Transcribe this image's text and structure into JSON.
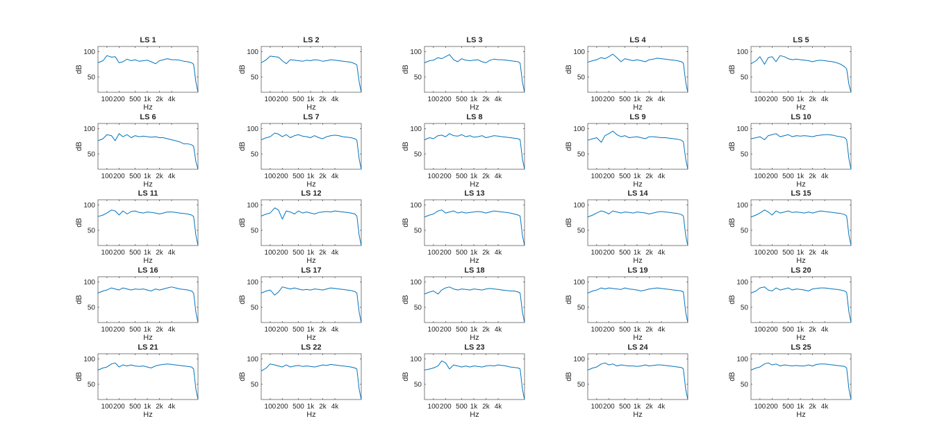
{
  "colors": {
    "line": "#0072bd",
    "axis": "#262626",
    "background": "#ffffff"
  },
  "chart_data": {
    "type": "line",
    "layout": "grid",
    "rows": 5,
    "cols": 5,
    "xscale": "log",
    "xlim": [
      60,
      18000
    ],
    "ylim": [
      20,
      110
    ],
    "xticks": [
      100,
      200,
      500,
      1000,
      2000,
      4000
    ],
    "xtick_labels": [
      "100",
      "200",
      "500",
      "1k",
      "2k",
      "4k"
    ],
    "yticks": [
      50,
      100
    ],
    "ytick_labels": [
      "50",
      "100"
    ],
    "xlabel": "Hz",
    "ylabel": "dB",
    "grid": false,
    "x": [
      60,
      80,
      100,
      130,
      160,
      200,
      250,
      315,
      400,
      500,
      630,
      800,
      1000,
      1250,
      1600,
      2000,
      2500,
      3150,
      4000,
      5000,
      6300,
      8000,
      10000,
      12500,
      14000,
      16000,
      18000
    ],
    "panels": [
      {
        "title": "LS 1",
        "values": [
          78,
          82,
          92,
          89,
          90,
          78,
          80,
          85,
          82,
          84,
          81,
          82,
          83,
          80,
          76,
          82,
          84,
          86,
          84,
          84,
          83,
          81,
          80,
          78,
          75,
          40,
          20
        ]
      },
      {
        "title": "LS 2",
        "values": [
          78,
          84,
          91,
          90,
          89,
          82,
          76,
          84,
          83,
          82,
          81,
          83,
          82,
          84,
          83,
          81,
          82,
          84,
          83,
          82,
          81,
          80,
          79,
          76,
          74,
          40,
          20
        ]
      },
      {
        "title": "LS 3",
        "values": [
          78,
          82,
          83,
          88,
          86,
          90,
          94,
          84,
          80,
          86,
          83,
          82,
          83,
          84,
          80,
          78,
          83,
          85,
          84,
          84,
          83,
          82,
          81,
          80,
          77,
          40,
          20
        ]
      },
      {
        "title": "LS 4",
        "values": [
          79,
          82,
          84,
          88,
          86,
          90,
          95,
          88,
          80,
          86,
          84,
          82,
          84,
          82,
          80,
          84,
          85,
          87,
          86,
          85,
          84,
          83,
          82,
          80,
          77,
          40,
          20
        ]
      },
      {
        "title": "LS 5",
        "values": [
          76,
          82,
          90,
          75,
          88,
          90,
          80,
          92,
          90,
          86,
          84,
          85,
          84,
          83,
          82,
          80,
          82,
          83,
          82,
          81,
          80,
          78,
          75,
          70,
          66,
          35,
          20
        ]
      },
      {
        "title": "LS 6",
        "values": [
          76,
          80,
          88,
          86,
          76,
          90,
          84,
          88,
          82,
          86,
          84,
          85,
          84,
          83,
          84,
          82,
          82,
          80,
          78,
          76,
          74,
          70,
          70,
          68,
          65,
          35,
          20
        ]
      },
      {
        "title": "LS 7",
        "values": [
          78,
          82,
          84,
          91,
          89,
          84,
          88,
          82,
          86,
          88,
          85,
          84,
          82,
          86,
          82,
          80,
          84,
          86,
          87,
          86,
          84,
          83,
          82,
          80,
          77,
          40,
          20
        ]
      },
      {
        "title": "LS 8",
        "values": [
          78,
          82,
          80,
          86,
          87,
          84,
          90,
          86,
          85,
          88,
          84,
          86,
          83,
          84,
          86,
          82,
          84,
          86,
          85,
          84,
          83,
          82,
          81,
          80,
          78,
          40,
          20
        ]
      },
      {
        "title": "LS 9",
        "values": [
          77,
          80,
          82,
          73,
          86,
          90,
          95,
          88,
          84,
          86,
          82,
          83,
          84,
          82,
          80,
          84,
          84,
          83,
          82,
          82,
          81,
          80,
          79,
          77,
          74,
          40,
          20
        ]
      },
      {
        "title": "LS 10",
        "values": [
          80,
          82,
          84,
          78,
          86,
          88,
          90,
          84,
          86,
          88,
          84,
          86,
          85,
          86,
          85,
          84,
          86,
          87,
          88,
          88,
          87,
          85,
          84,
          82,
          78,
          40,
          20
        ]
      },
      {
        "title": "LS 11",
        "values": [
          77,
          80,
          84,
          90,
          88,
          80,
          88,
          82,
          87,
          88,
          85,
          84,
          86,
          85,
          84,
          82,
          84,
          86,
          86,
          85,
          84,
          83,
          82,
          80,
          77,
          40,
          20
        ]
      },
      {
        "title": "LS 12",
        "values": [
          78,
          82,
          84,
          94,
          90,
          72,
          88,
          86,
          82,
          88,
          84,
          86,
          84,
          82,
          85,
          86,
          87,
          86,
          88,
          87,
          86,
          85,
          84,
          82,
          78,
          40,
          20
        ]
      },
      {
        "title": "LS 13",
        "values": [
          76,
          80,
          82,
          88,
          90,
          84,
          86,
          88,
          84,
          86,
          84,
          85,
          86,
          87,
          86,
          84,
          86,
          88,
          87,
          86,
          85,
          84,
          82,
          80,
          78,
          40,
          20
        ]
      },
      {
        "title": "LS 14",
        "values": [
          76,
          80,
          84,
          88,
          86,
          82,
          88,
          86,
          84,
          86,
          85,
          84,
          86,
          85,
          84,
          82,
          84,
          86,
          87,
          86,
          85,
          84,
          83,
          81,
          78,
          40,
          20
        ]
      },
      {
        "title": "LS 15",
        "values": [
          76,
          80,
          84,
          90,
          86,
          80,
          88,
          84,
          86,
          88,
          85,
          86,
          85,
          84,
          86,
          84,
          86,
          88,
          87,
          86,
          85,
          84,
          83,
          81,
          78,
          40,
          20
        ]
      },
      {
        "title": "LS 16",
        "values": [
          78,
          82,
          84,
          88,
          86,
          84,
          88,
          86,
          84,
          86,
          85,
          86,
          84,
          82,
          86,
          84,
          86,
          88,
          90,
          88,
          86,
          85,
          84,
          82,
          78,
          40,
          20
        ]
      },
      {
        "title": "LS 17",
        "values": [
          78,
          82,
          84,
          74,
          80,
          90,
          88,
          86,
          88,
          86,
          84,
          85,
          84,
          86,
          85,
          84,
          86,
          88,
          87,
          86,
          85,
          84,
          83,
          81,
          78,
          40,
          20
        ]
      },
      {
        "title": "LS 18",
        "values": [
          76,
          80,
          82,
          76,
          84,
          88,
          90,
          86,
          84,
          86,
          85,
          84,
          86,
          85,
          84,
          86,
          87,
          86,
          85,
          84,
          83,
          82,
          82,
          80,
          78,
          40,
          20
        ]
      },
      {
        "title": "LS 19",
        "values": [
          78,
          82,
          84,
          88,
          86,
          88,
          87,
          86,
          85,
          88,
          86,
          85,
          84,
          82,
          84,
          86,
          87,
          88,
          87,
          86,
          85,
          84,
          83,
          82,
          80,
          40,
          20
        ]
      },
      {
        "title": "LS 20",
        "values": [
          78,
          82,
          88,
          90,
          84,
          82,
          88,
          84,
          86,
          88,
          84,
          86,
          85,
          84,
          82,
          86,
          87,
          88,
          88,
          87,
          86,
          85,
          84,
          82,
          79,
          40,
          20
        ]
      },
      {
        "title": "LS 21",
        "values": [
          78,
          82,
          84,
          90,
          92,
          84,
          88,
          86,
          88,
          86,
          85,
          86,
          84,
          82,
          86,
          88,
          89,
          90,
          89,
          88,
          87,
          86,
          85,
          84,
          80,
          40,
          20
        ]
      },
      {
        "title": "LS 22",
        "values": [
          76,
          82,
          90,
          88,
          86,
          84,
          88,
          84,
          86,
          87,
          85,
          86,
          85,
          84,
          86,
          88,
          87,
          89,
          88,
          87,
          86,
          85,
          84,
          82,
          80,
          40,
          20
        ]
      },
      {
        "title": "LS 23",
        "values": [
          78,
          80,
          82,
          86,
          96,
          92,
          80,
          88,
          86,
          84,
          86,
          84,
          86,
          85,
          84,
          86,
          87,
          86,
          88,
          87,
          86,
          84,
          83,
          82,
          80,
          40,
          20
        ]
      },
      {
        "title": "LS 24",
        "values": [
          78,
          82,
          84,
          90,
          92,
          88,
          90,
          86,
          88,
          87,
          86,
          86,
          85,
          86,
          88,
          86,
          87,
          88,
          88,
          87,
          86,
          85,
          84,
          83,
          80,
          40,
          20
        ]
      },
      {
        "title": "LS 25",
        "values": [
          78,
          82,
          84,
          90,
          92,
          88,
          90,
          86,
          88,
          87,
          86,
          87,
          86,
          86,
          88,
          86,
          89,
          90,
          90,
          89,
          88,
          87,
          86,
          85,
          82,
          40,
          20
        ]
      }
    ]
  }
}
